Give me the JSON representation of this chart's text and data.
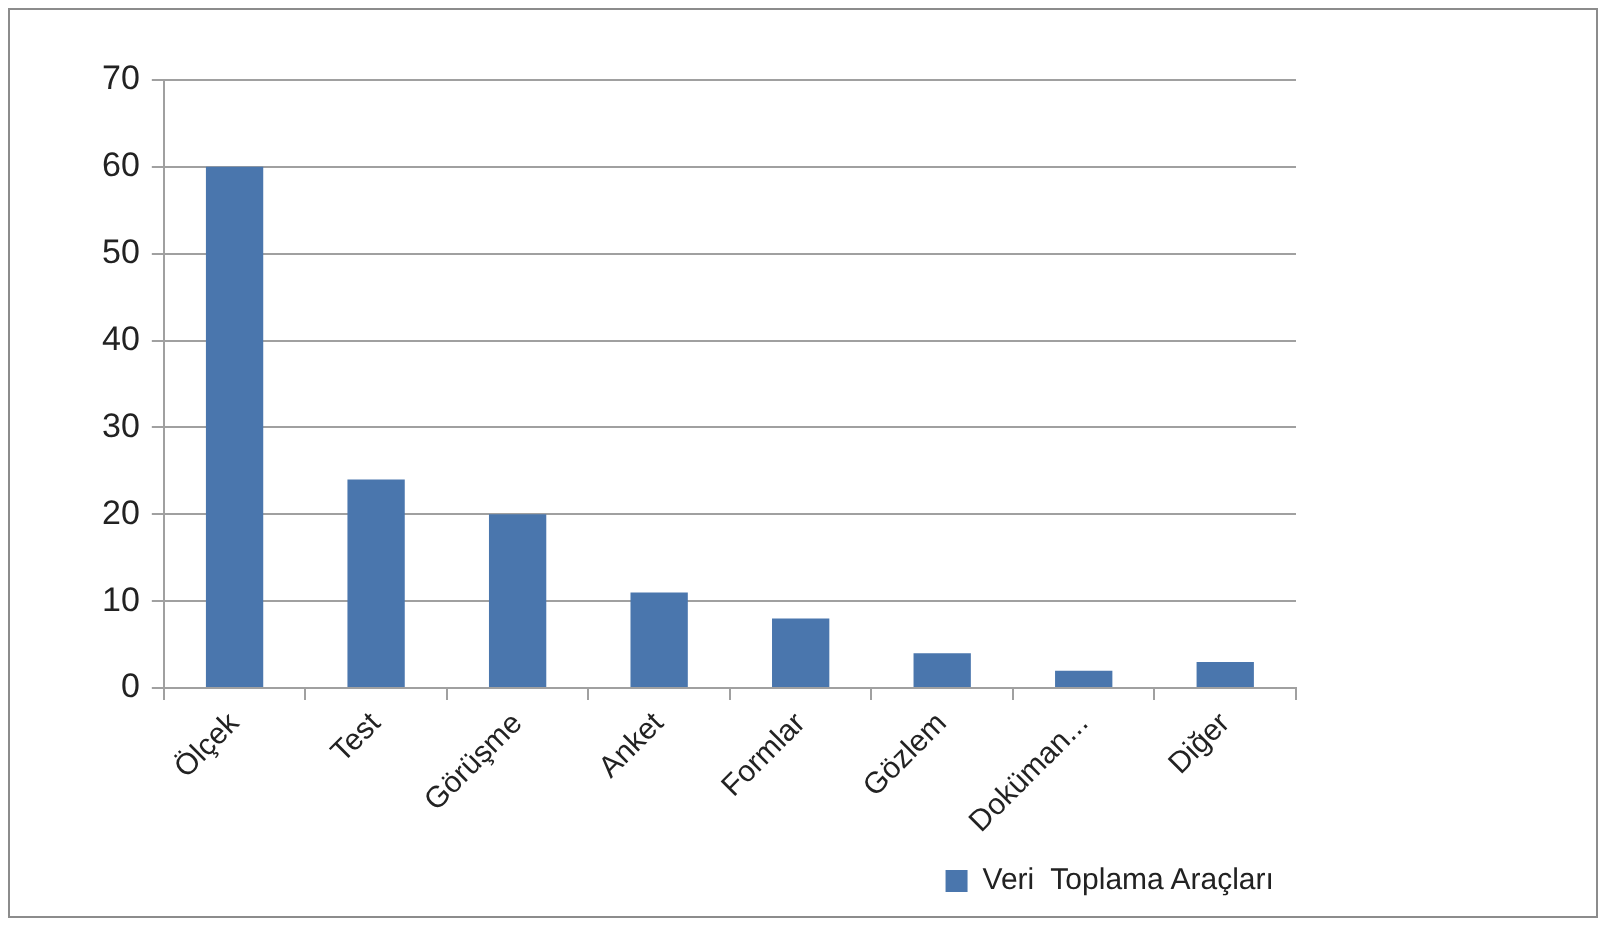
{
  "chart_data": {
    "type": "bar",
    "categories": [
      "Ölçek",
      "Test",
      "Görüşme",
      "Anket",
      "Formlar",
      "Gözlem",
      "Doküman...",
      "Diğer"
    ],
    "series": [
      {
        "name": "Veri  Toplama Araçları",
        "color": "#4a76ad",
        "values": [
          60,
          24,
          20,
          11,
          8,
          4,
          2,
          3
        ]
      }
    ],
    "ylim": [
      0,
      70
    ],
    "yticks": [
      0,
      10,
      20,
      30,
      40,
      50,
      60,
      70
    ],
    "grid": "y",
    "legend": "bottom right"
  }
}
